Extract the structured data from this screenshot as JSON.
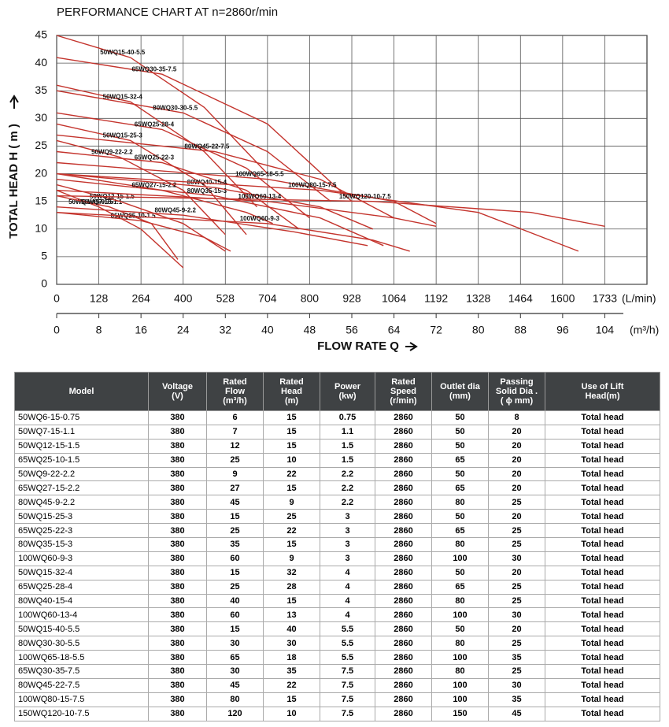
{
  "chart_data": {
    "type": "line",
    "title": "PERFORMANCE CHART AT  n=2860r/min",
    "y_label": "TOTAL HEAD H ( m )",
    "x_label": "FLOW RATE Q",
    "x_unit": "(m³/h)",
    "x2_unit": "(L/min)",
    "color": "#c4342d",
    "grid": true,
    "xlim": [
      0,
      112
    ],
    "xticks": [
      0,
      8,
      16,
      24,
      32,
      40,
      48,
      56,
      64,
      72,
      80,
      88,
      96,
      104
    ],
    "x2_labels": [
      "0",
      "128",
      "264",
      "400",
      "528",
      "704",
      "800",
      "928",
      "1064",
      "1192",
      "1328",
      "1464",
      "1600",
      "1733"
    ],
    "ylim": [
      0,
      45
    ],
    "yticks": [
      0,
      5,
      10,
      15,
      20,
      25,
      30,
      35,
      40,
      45
    ],
    "series": [
      {
        "name": "50WQ6-15-0.75",
        "x": [
          0,
          8,
          16,
          24
        ],
        "values": [
          17,
          14,
          10,
          3
        ]
      },
      {
        "name": "50WQ7-15-1.1",
        "x": [
          0,
          10,
          18,
          23
        ],
        "values": [
          16,
          14,
          11,
          4.5
        ]
      },
      {
        "name": "50WQ12-15-1.5",
        "x": [
          0,
          12,
          24,
          32
        ],
        "values": [
          18,
          15,
          11,
          6
        ]
      },
      {
        "name": "65WQ25-10-1.5",
        "x": [
          0,
          16,
          28,
          33
        ],
        "values": [
          13,
          11.5,
          8.5,
          6
        ]
      },
      {
        "name": "50WQ9-22-2.2",
        "x": [
          0,
          12,
          24,
          32
        ],
        "values": [
          26,
          23,
          17,
          9
        ]
      },
      {
        "name": "65WQ27-15-2.2",
        "x": [
          0,
          20,
          36,
          41
        ],
        "values": [
          20,
          17,
          13,
          11
        ]
      },
      {
        "name": "80WQ45-9-2.2",
        "x": [
          0,
          24,
          45,
          59
        ],
        "values": [
          14,
          12.5,
          9.5,
          7
        ]
      },
      {
        "name": "50WQ15-25-3",
        "x": [
          0,
          14,
          28,
          36
        ],
        "values": [
          29,
          26,
          18,
          9
        ]
      },
      {
        "name": "65WQ25-22-3",
        "x": [
          0,
          20,
          36,
          46
        ],
        "values": [
          24,
          22,
          17,
          10
        ]
      },
      {
        "name": "80WQ35-15-3",
        "x": [
          0,
          30,
          50,
          62
        ],
        "values": [
          19,
          16,
          12,
          7
        ]
      },
      {
        "name": "100WQ60-9-3",
        "x": [
          0,
          40,
          60,
          67
        ],
        "values": [
          13,
          11,
          8,
          6
        ]
      },
      {
        "name": "50WQ15-32-4",
        "x": [
          0,
          14,
          28,
          38
        ],
        "values": [
          36,
          33,
          24,
          14
        ]
      },
      {
        "name": "65WQ25-28-4",
        "x": [
          0,
          20,
          36,
          48
        ],
        "values": [
          31,
          28,
          21,
          12
        ]
      },
      {
        "name": "80WQ40-15-4",
        "x": [
          0,
          30,
          50,
          60
        ],
        "values": [
          20,
          17.5,
          14,
          10
        ]
      },
      {
        "name": "100WQ60-13-4",
        "x": [
          0,
          40,
          64,
          72
        ],
        "values": [
          17,
          15,
          12,
          10.5
        ]
      },
      {
        "name": "50WQ15-40-5.5",
        "x": [
          0,
          14,
          28,
          40
        ],
        "values": [
          45,
          41,
          32,
          20
        ]
      },
      {
        "name": "80WQ30-30-5.5",
        "x": [
          0,
          24,
          40,
          52
        ],
        "values": [
          35,
          31,
          24,
          15
        ]
      },
      {
        "name": "100WQ65-18-5.5",
        "x": [
          0,
          40,
          64,
          72
        ],
        "values": [
          22,
          19,
          15,
          11
        ]
      },
      {
        "name": "65WQ30-35-7.5",
        "x": [
          0,
          20,
          40,
          56
        ],
        "values": [
          41,
          38,
          29,
          15
        ]
      },
      {
        "name": "80WQ45-22-7.5",
        "x": [
          0,
          30,
          50,
          64
        ],
        "values": [
          27,
          24,
          19,
          12
        ]
      },
      {
        "name": "100WQ80-15-7.5",
        "x": [
          0,
          50,
          80,
          99
        ],
        "values": [
          20,
          17,
          13,
          6
        ]
      },
      {
        "name": "150WQ120-10-7.5",
        "x": [
          0,
          60,
          90,
          104
        ],
        "values": [
          16,
          15,
          13,
          10.5
        ]
      }
    ]
  },
  "table": {
    "header": [
      "Model",
      "Voltage\n(V)",
      "Rated\nFlow\n(m³/h)",
      "Rated\nHead\n(m)",
      "Power\n(kw)",
      "Rated\nSpeed\n(r/min)",
      "Outlet dia\n(mm)",
      "Passing\nSolid Dia .\n( ϕ mm)",
      "Use of Lift\nHead(m)"
    ],
    "rows": [
      [
        "50WQ6-15-0.75",
        "380",
        "6",
        "15",
        "0.75",
        "2860",
        "50",
        "8",
        "Total head"
      ],
      [
        "50WQ7-15-1.1",
        "380",
        "7",
        "15",
        "1.1",
        "2860",
        "50",
        "20",
        "Total head"
      ],
      [
        "50WQ12-15-1.5",
        "380",
        "12",
        "15",
        "1.5",
        "2860",
        "50",
        "20",
        "Total head"
      ],
      [
        "65WQ25-10-1.5",
        "380",
        "25",
        "10",
        "1.5",
        "2860",
        "65",
        "20",
        "Total head"
      ],
      [
        "50WQ9-22-2.2",
        "380",
        "9",
        "22",
        "2.2",
        "2860",
        "50",
        "20",
        "Total head"
      ],
      [
        "65WQ27-15-2.2",
        "380",
        "27",
        "15",
        "2.2",
        "2860",
        "65",
        "20",
        "Total head"
      ],
      [
        "80WQ45-9-2.2",
        "380",
        "45",
        "9",
        "2.2",
        "2860",
        "80",
        "25",
        "Total head"
      ],
      [
        "50WQ15-25-3",
        "380",
        "15",
        "25",
        "3",
        "2860",
        "50",
        "20",
        "Total head"
      ],
      [
        "65WQ25-22-3",
        "380",
        "25",
        "22",
        "3",
        "2860",
        "65",
        "25",
        "Total head"
      ],
      [
        "80WQ35-15-3",
        "380",
        "35",
        "15",
        "3",
        "2860",
        "80",
        "25",
        "Total head"
      ],
      [
        "100WQ60-9-3",
        "380",
        "60",
        "9",
        "3",
        "2860",
        "100",
        "30",
        "Total head"
      ],
      [
        "50WQ15-32-4",
        "380",
        "15",
        "32",
        "4",
        "2860",
        "50",
        "20",
        "Total head"
      ],
      [
        "65WQ25-28-4",
        "380",
        "25",
        "28",
        "4",
        "2860",
        "65",
        "25",
        "Total head"
      ],
      [
        "80WQ40-15-4",
        "380",
        "40",
        "15",
        "4",
        "2860",
        "80",
        "25",
        "Total head"
      ],
      [
        "100WQ60-13-4",
        "380",
        "60",
        "13",
        "4",
        "2860",
        "100",
        "30",
        "Total head"
      ],
      [
        "50WQ15-40-5.5",
        "380",
        "15",
        "40",
        "5.5",
        "2860",
        "50",
        "20",
        "Total head"
      ],
      [
        "80WQ30-30-5.5",
        "380",
        "30",
        "30",
        "5.5",
        "2860",
        "80",
        "25",
        "Total head"
      ],
      [
        "100WQ65-18-5.5",
        "380",
        "65",
        "18",
        "5.5",
        "2860",
        "100",
        "35",
        "Total head"
      ],
      [
        "65WQ30-35-7.5",
        "380",
        "30",
        "35",
        "7.5",
        "2860",
        "80",
        "25",
        "Total head"
      ],
      [
        "80WQ45-22-7.5",
        "380",
        "45",
        "22",
        "7.5",
        "2860",
        "100",
        "30",
        "Total head"
      ],
      [
        "100WQ80-15-7.5",
        "380",
        "80",
        "15",
        "7.5",
        "2860",
        "100",
        "35",
        "Total head"
      ],
      [
        "150WQ120-10-7.5",
        "380",
        "120",
        "10",
        "7.5",
        "2860",
        "150",
        "45",
        "Total head"
      ]
    ]
  }
}
